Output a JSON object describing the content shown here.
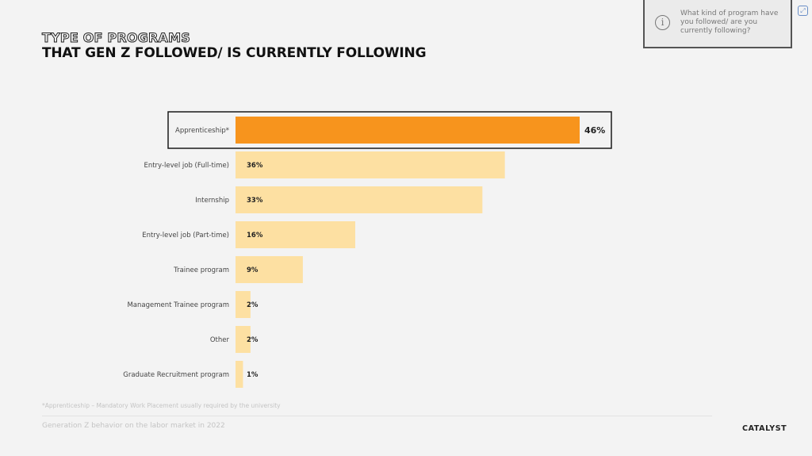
{
  "header": {
    "title_line1": "TYPE OF PROGRAMS",
    "title_line2": "THAT GEN Z FOLLOWED/ IS CURRENTLY FOLLOWING"
  },
  "infobox": {
    "icon": "info-icon",
    "question": "What kind of program have you followed/ are you currently following?"
  },
  "chart_data": {
    "type": "bar",
    "orientation": "horizontal",
    "categories": [
      "Apprenticeship*",
      "Entry-level job (Full-time)",
      "Internship",
      "Entry-level job (Part-time)",
      "Trainee program",
      "Management Trainee program",
      "Other",
      "Graduate Recruitment program"
    ],
    "values": [
      46,
      36,
      33,
      16,
      9,
      2,
      2,
      1
    ],
    "value_labels": [
      "46%",
      "36%",
      "33%",
      "16%",
      "9%",
      "2%",
      "2%",
      "1%"
    ],
    "unit": "%",
    "highlight_index": 0,
    "colors": {
      "highlight": "#f7941d",
      "default": "#fde0a2",
      "highlight_border": "#1a1a1a"
    },
    "xlim": [
      0,
      46
    ],
    "grid": false,
    "legend": "none"
  },
  "footnote": "*Apprenticeship – Mandatory Work Placement usually required by the university",
  "footer": {
    "text": "Generation Z behavior on the labor market in 2022",
    "brand": "CATALYST"
  }
}
